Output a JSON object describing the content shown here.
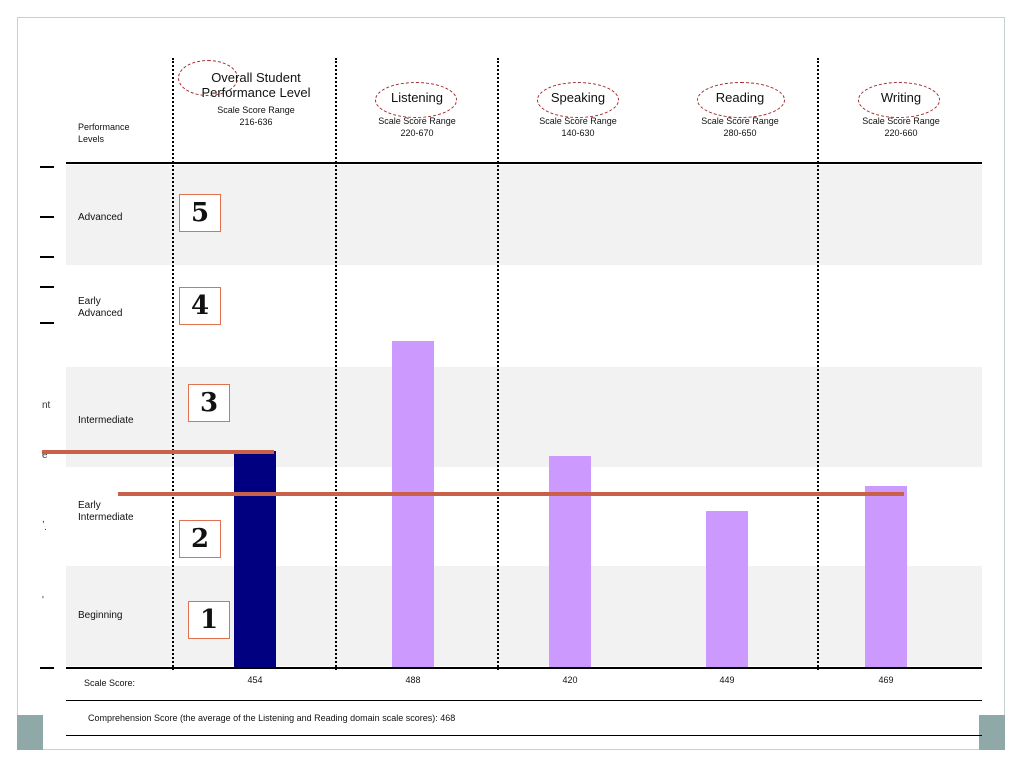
{
  "colors": {
    "overall_bar": "#000080",
    "domain_bar": "#cc99ff",
    "reference_line": "#c9604a",
    "shaded_band": "#f2f2f2",
    "ellipse": "#a02a2a",
    "level_box_border": "#e07050",
    "slide_accent": "#8fa9a8"
  },
  "header": {
    "performance_levels": "Performance\nLevels",
    "columns": [
      {
        "title": "Overall Student\nPerformance Level",
        "range_label": "Scale Score Range",
        "range": "216-636"
      },
      {
        "title": "Listening",
        "range_label": "Scale Score Range",
        "range": "220-670"
      },
      {
        "title": "Speaking",
        "range_label": "Scale Score Range",
        "range": "140-630"
      },
      {
        "title": "Reading",
        "range_label": "Scale Score Range",
        "range": "280-650"
      },
      {
        "title": "Writing",
        "range_label": "Scale Score Range",
        "range": "220-660"
      }
    ]
  },
  "levels": [
    {
      "name": "Advanced",
      "number": "5"
    },
    {
      "name": "Early\nAdvanced",
      "number": "4"
    },
    {
      "name": "Intermediate",
      "number": "3"
    },
    {
      "name": "Early\nIntermediate",
      "number": "2"
    },
    {
      "name": "Beginning",
      "number": "1"
    }
  ],
  "edge_marks": [
    "nt",
    "e",
    ",",
    ".",
    "'"
  ],
  "footer": {
    "scale_score_label": "Scale Score:",
    "comprehension_note": "Comprehension Score (the average of the Listening and Reading domain scale scores): 468"
  },
  "chart_data": {
    "type": "bar",
    "title": "",
    "xlabel": "",
    "ylabel": "",
    "categories": [
      "Overall Student Performance Level",
      "Listening",
      "Speaking",
      "Reading",
      "Writing"
    ],
    "values": [
      454,
      488,
      420,
      449,
      469
    ],
    "value_labels": [
      "454",
      "488",
      "420",
      "449",
      "469"
    ],
    "bar_heights_fraction_of_axis": [
      0.43,
      0.65,
      0.42,
      0.31,
      0.36
    ],
    "grid": false,
    "legend": "none"
  }
}
